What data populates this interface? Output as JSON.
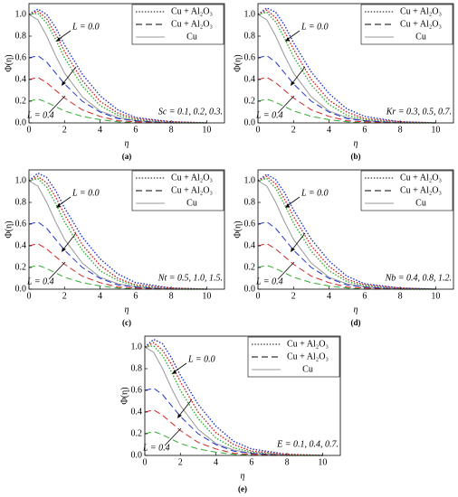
{
  "chart_data": [
    {
      "type": "line",
      "panel_label": "(a)",
      "x_label": "η",
      "y_label": "Φ(η)",
      "annotation_top": "L = 0.0",
      "annotation_bottom": "L = 0.4",
      "parameter": "Sc = 0.1, 0.2, 0.3.",
      "legend": [
        {
          "label": "Cu + Al₂O₃",
          "dash": "dotted"
        },
        {
          "label": "Cu + Al₂O₃",
          "dash": "dashed"
        },
        {
          "label": "Cu",
          "dash": "solid"
        }
      ],
      "x": [
        0,
        0.5,
        1,
        1.5,
        2,
        3,
        4,
        5,
        6,
        8,
        10
      ],
      "xlim": [
        0,
        11
      ],
      "xticks": [
        0,
        2,
        4,
        6,
        8,
        10
      ],
      "ylim": [
        0,
        1.1
      ],
      "yticks": [
        {
          "value": 0,
          "label": "0.0"
        },
        {
          "value": 0.2,
          "label": "0.2"
        },
        {
          "value": 0.4,
          "label": "0.4"
        },
        {
          "value": 0.6,
          "label": "0.6"
        },
        {
          "value": 0.8,
          "label": "0.8"
        },
        {
          "value": 1,
          "label": "1.0"
        }
      ],
      "series": [
        {
          "color": "#2233cc",
          "dash": "dotted",
          "values": [
            1.0,
            1.05,
            1.0,
            0.88,
            0.72,
            0.45,
            0.25,
            0.12,
            0.05,
            0.01,
            0.0
          ]
        },
        {
          "color": "#cc2222",
          "dash": "dotted",
          "values": [
            1.0,
            1.03,
            0.96,
            0.82,
            0.66,
            0.39,
            0.2,
            0.09,
            0.04,
            0.01,
            0.0
          ]
        },
        {
          "color": "#33aa33",
          "dash": "dotted",
          "values": [
            1.0,
            1.01,
            0.92,
            0.77,
            0.6,
            0.34,
            0.16,
            0.07,
            0.03,
            0.0,
            0.0
          ]
        },
        {
          "color": "#999999",
          "dash": "solid",
          "values": [
            1.0,
            0.95,
            0.8,
            0.62,
            0.46,
            0.24,
            0.11,
            0.05,
            0.02,
            0.0,
            0.0
          ]
        },
        {
          "color": "#2233cc",
          "dash": "dashed",
          "values": [
            0.6,
            0.62,
            0.56,
            0.46,
            0.36,
            0.2,
            0.1,
            0.04,
            0.02,
            0.0,
            0.0
          ]
        },
        {
          "color": "#cc2222",
          "dash": "dashed",
          "values": [
            0.4,
            0.42,
            0.37,
            0.3,
            0.23,
            0.12,
            0.06,
            0.02,
            0.01,
            0.0,
            0.0
          ]
        },
        {
          "color": "#33aa33",
          "dash": "dashed",
          "values": [
            0.2,
            0.22,
            0.19,
            0.15,
            0.11,
            0.06,
            0.03,
            0.01,
            0.0,
            0.0,
            0.0
          ]
        }
      ]
    },
    {
      "type": "line",
      "panel_label": "(b)",
      "x_label": "η",
      "y_label": "Φ(η)",
      "annotation_top": "L = 0.0",
      "annotation_bottom": "L = 0.4",
      "parameter": "Kr = 0.3, 0.5, 0.7.",
      "legend": [
        {
          "label": "Cu + Al₂O₃",
          "dash": "dotted"
        },
        {
          "label": "Cu + Al₂O₃",
          "dash": "dashed"
        },
        {
          "label": "Cu",
          "dash": "solid"
        }
      ],
      "x": [
        0,
        0.5,
        1,
        1.5,
        2,
        3,
        4,
        5,
        6,
        8,
        10
      ],
      "xlim": [
        0,
        11
      ],
      "xticks": [
        0,
        2,
        4,
        6,
        8,
        10
      ],
      "ylim": [
        0,
        1.1
      ],
      "yticks": [
        {
          "value": 0,
          "label": "0.0"
        },
        {
          "value": 0.2,
          "label": "0.2"
        },
        {
          "value": 0.4,
          "label": "0.4"
        },
        {
          "value": 0.6,
          "label": "0.6"
        },
        {
          "value": 0.8,
          "label": "0.8"
        },
        {
          "value": 1,
          "label": "1.0"
        }
      ],
      "series": [
        {
          "color": "#2233cc",
          "dash": "dotted",
          "values": [
            1.0,
            1.06,
            1.02,
            0.9,
            0.74,
            0.47,
            0.27,
            0.13,
            0.06,
            0.01,
            0.0
          ]
        },
        {
          "color": "#cc2222",
          "dash": "dotted",
          "values": [
            1.0,
            1.04,
            0.97,
            0.84,
            0.68,
            0.4,
            0.21,
            0.1,
            0.04,
            0.01,
            0.0
          ]
        },
        {
          "color": "#33aa33",
          "dash": "dotted",
          "values": [
            1.0,
            1.02,
            0.93,
            0.78,
            0.61,
            0.35,
            0.17,
            0.07,
            0.03,
            0.0,
            0.0
          ]
        },
        {
          "color": "#999999",
          "dash": "solid",
          "values": [
            1.0,
            0.95,
            0.8,
            0.62,
            0.46,
            0.24,
            0.11,
            0.05,
            0.02,
            0.0,
            0.0
          ]
        },
        {
          "color": "#2233cc",
          "dash": "dashed",
          "values": [
            0.6,
            0.62,
            0.56,
            0.46,
            0.36,
            0.2,
            0.1,
            0.04,
            0.02,
            0.0,
            0.0
          ]
        },
        {
          "color": "#cc2222",
          "dash": "dashed",
          "values": [
            0.4,
            0.42,
            0.37,
            0.3,
            0.23,
            0.12,
            0.06,
            0.02,
            0.01,
            0.0,
            0.0
          ]
        },
        {
          "color": "#33aa33",
          "dash": "dashed",
          "values": [
            0.2,
            0.22,
            0.19,
            0.15,
            0.11,
            0.06,
            0.03,
            0.01,
            0.0,
            0.0,
            0.0
          ]
        }
      ]
    },
    {
      "type": "line",
      "panel_label": "(c)",
      "x_label": "η",
      "y_label": "Φ(η)",
      "annotation_top": "L = 0.0",
      "annotation_bottom": "L = 0.4",
      "parameter": "Nt = 0.5, 1.0, 1.5.",
      "legend": [
        {
          "label": "Cu + Al₂O₃",
          "dash": "dotted"
        },
        {
          "label": "Cu + Al₂O₃",
          "dash": "dashed"
        },
        {
          "label": "Cu",
          "dash": "solid"
        }
      ],
      "x": [
        0,
        0.5,
        1,
        1.5,
        2,
        3,
        4,
        5,
        6,
        8,
        10
      ],
      "xlim": [
        0,
        11
      ],
      "xticks": [
        0,
        2,
        4,
        6,
        8,
        10
      ],
      "ylim": [
        0,
        1.1
      ],
      "yticks": [
        {
          "value": 0,
          "label": "0.0"
        },
        {
          "value": 0.2,
          "label": "0.2"
        },
        {
          "value": 0.4,
          "label": "0.4"
        },
        {
          "value": 0.6,
          "label": "0.6"
        },
        {
          "value": 0.8,
          "label": "0.8"
        },
        {
          "value": 1,
          "label": "1.0"
        }
      ],
      "series": [
        {
          "color": "#2233cc",
          "dash": "dotted",
          "values": [
            1.0,
            1.07,
            1.03,
            0.91,
            0.75,
            0.48,
            0.28,
            0.14,
            0.06,
            0.01,
            0.0
          ]
        },
        {
          "color": "#cc2222",
          "dash": "dotted",
          "values": [
            1.0,
            1.04,
            0.98,
            0.85,
            0.69,
            0.41,
            0.22,
            0.1,
            0.04,
            0.01,
            0.0
          ]
        },
        {
          "color": "#33aa33",
          "dash": "dotted",
          "values": [
            1.0,
            1.02,
            0.94,
            0.79,
            0.62,
            0.36,
            0.17,
            0.08,
            0.03,
            0.0,
            0.0
          ]
        },
        {
          "color": "#999999",
          "dash": "solid",
          "values": [
            1.0,
            0.95,
            0.8,
            0.62,
            0.46,
            0.24,
            0.11,
            0.05,
            0.02,
            0.0,
            0.0
          ]
        },
        {
          "color": "#2233cc",
          "dash": "dashed",
          "values": [
            0.6,
            0.62,
            0.56,
            0.46,
            0.36,
            0.2,
            0.1,
            0.04,
            0.02,
            0.0,
            0.0
          ]
        },
        {
          "color": "#cc2222",
          "dash": "dashed",
          "values": [
            0.4,
            0.42,
            0.37,
            0.3,
            0.23,
            0.12,
            0.06,
            0.02,
            0.01,
            0.0,
            0.0
          ]
        },
        {
          "color": "#33aa33",
          "dash": "dashed",
          "values": [
            0.2,
            0.22,
            0.19,
            0.15,
            0.11,
            0.06,
            0.03,
            0.01,
            0.0,
            0.0,
            0.0
          ]
        }
      ]
    },
    {
      "type": "line",
      "panel_label": "(d)",
      "x_label": "η",
      "y_label": "Φ(η)",
      "annotation_top": "L = 0.0",
      "annotation_bottom": "L = 0.4",
      "parameter": "Nb = 0.4, 0.8, 1.2.",
      "legend": [
        {
          "label": "Cu + Al₂O₃",
          "dash": "dotted"
        },
        {
          "label": "Cu + Al₂O₃",
          "dash": "dashed"
        },
        {
          "label": "Cu",
          "dash": "solid"
        }
      ],
      "x": [
        0,
        0.5,
        1,
        1.5,
        2,
        3,
        4,
        5,
        6,
        8,
        10
      ],
      "xlim": [
        0,
        11
      ],
      "xticks": [
        0,
        2,
        4,
        6,
        8,
        10
      ],
      "ylim": [
        0,
        1.1
      ],
      "yticks": [
        {
          "value": 0,
          "label": "0.0"
        },
        {
          "value": 0.2,
          "label": "0.2"
        },
        {
          "value": 0.4,
          "label": "0.4"
        },
        {
          "value": 0.6,
          "label": "0.6"
        },
        {
          "value": 0.8,
          "label": "0.8"
        },
        {
          "value": 1,
          "label": "1.0"
        }
      ],
      "series": [
        {
          "color": "#2233cc",
          "dash": "dotted",
          "values": [
            1.0,
            1.06,
            1.01,
            0.89,
            0.73,
            0.46,
            0.26,
            0.12,
            0.05,
            0.01,
            0.0
          ]
        },
        {
          "color": "#cc2222",
          "dash": "dotted",
          "values": [
            1.0,
            1.04,
            0.97,
            0.83,
            0.67,
            0.4,
            0.21,
            0.09,
            0.04,
            0.01,
            0.0
          ]
        },
        {
          "color": "#33aa33",
          "dash": "dotted",
          "values": [
            1.0,
            1.02,
            0.93,
            0.78,
            0.61,
            0.35,
            0.17,
            0.07,
            0.03,
            0.0,
            0.0
          ]
        },
        {
          "color": "#999999",
          "dash": "solid",
          "values": [
            1.0,
            0.95,
            0.8,
            0.62,
            0.46,
            0.24,
            0.11,
            0.05,
            0.02,
            0.0,
            0.0
          ]
        },
        {
          "color": "#2233cc",
          "dash": "dashed",
          "values": [
            0.6,
            0.62,
            0.56,
            0.46,
            0.36,
            0.2,
            0.1,
            0.04,
            0.02,
            0.0,
            0.0
          ]
        },
        {
          "color": "#cc2222",
          "dash": "dashed",
          "values": [
            0.4,
            0.42,
            0.37,
            0.3,
            0.23,
            0.12,
            0.06,
            0.02,
            0.01,
            0.0,
            0.0
          ]
        },
        {
          "color": "#33aa33",
          "dash": "dashed",
          "values": [
            0.2,
            0.22,
            0.19,
            0.15,
            0.11,
            0.06,
            0.03,
            0.01,
            0.0,
            0.0,
            0.0
          ]
        }
      ]
    },
    {
      "type": "line",
      "panel_label": "(e)",
      "x_label": "η",
      "y_label": "Φ(η)",
      "annotation_top": "L = 0.0",
      "annotation_bottom": "L = 0.4",
      "parameter": "E = 0.1, 0.4, 0.7.",
      "legend": [
        {
          "label": "Cu + Al₂O₃",
          "dash": "dotted"
        },
        {
          "label": "Cu + Al₂O₃",
          "dash": "dashed"
        },
        {
          "label": "Cu",
          "dash": "solid"
        }
      ],
      "x": [
        0,
        0.5,
        1,
        1.5,
        2,
        3,
        4,
        5,
        6,
        8,
        10
      ],
      "xlim": [
        0,
        11
      ],
      "xticks": [
        0,
        2,
        4,
        6,
        8,
        10
      ],
      "ylim": [
        0,
        1.1
      ],
      "yticks": [
        {
          "value": 0,
          "label": "0.0"
        },
        {
          "value": 0.2,
          "label": "0.2"
        },
        {
          "value": 0.4,
          "label": "0.4"
        },
        {
          "value": 0.6,
          "label": "0.6"
        },
        {
          "value": 0.8,
          "label": "0.8"
        },
        {
          "value": 1,
          "label": "1.0"
        }
      ],
      "series": [
        {
          "color": "#2233cc",
          "dash": "dotted",
          "values": [
            1.0,
            1.07,
            1.03,
            0.9,
            0.74,
            0.47,
            0.27,
            0.13,
            0.06,
            0.01,
            0.0
          ]
        },
        {
          "color": "#cc2222",
          "dash": "dotted",
          "values": [
            1.0,
            1.04,
            0.97,
            0.84,
            0.68,
            0.4,
            0.21,
            0.1,
            0.04,
            0.01,
            0.0
          ]
        },
        {
          "color": "#33aa33",
          "dash": "dotted",
          "values": [
            1.0,
            1.01,
            0.92,
            0.77,
            0.6,
            0.34,
            0.16,
            0.07,
            0.03,
            0.0,
            0.0
          ]
        },
        {
          "color": "#999999",
          "dash": "solid",
          "values": [
            1.0,
            0.95,
            0.8,
            0.62,
            0.46,
            0.24,
            0.11,
            0.05,
            0.02,
            0.0,
            0.0
          ]
        },
        {
          "color": "#2233cc",
          "dash": "dashed",
          "values": [
            0.6,
            0.62,
            0.56,
            0.46,
            0.36,
            0.2,
            0.1,
            0.04,
            0.02,
            0.0,
            0.0
          ]
        },
        {
          "color": "#cc2222",
          "dash": "dashed",
          "values": [
            0.4,
            0.42,
            0.37,
            0.3,
            0.23,
            0.12,
            0.06,
            0.02,
            0.01,
            0.0,
            0.0
          ]
        },
        {
          "color": "#33aa33",
          "dash": "dashed",
          "values": [
            0.2,
            0.22,
            0.19,
            0.15,
            0.11,
            0.06,
            0.03,
            0.01,
            0.0,
            0.0,
            0.0
          ]
        }
      ]
    }
  ]
}
